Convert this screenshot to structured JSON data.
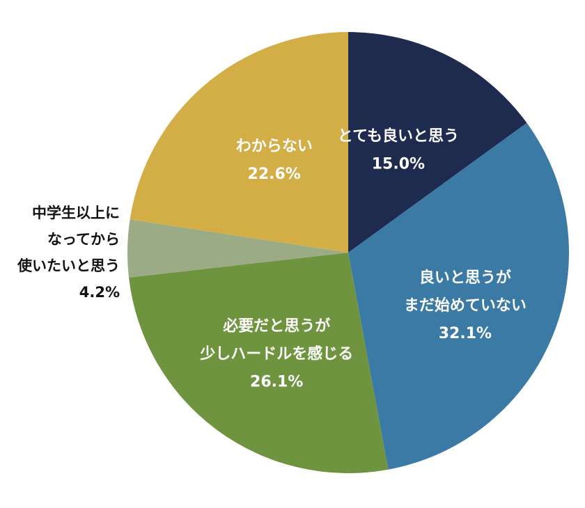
{
  "chart_data": {
    "type": "pie",
    "start_angle_deg": 0,
    "direction": "clockwise",
    "slices": [
      {
        "label_lines": [
          "とても良いと思う"
        ],
        "value": 15.0,
        "value_label": "15.0%",
        "color": "#1f2a4f",
        "label_position": "inside"
      },
      {
        "label_lines": [
          "良いと思うが",
          "まだ始めていない"
        ],
        "value": 32.1,
        "value_label": "32.1%",
        "color": "#3b7aa5",
        "label_position": "inside"
      },
      {
        "label_lines": [
          "必要だと思うが",
          "少しハードルを感じる"
        ],
        "value": 26.1,
        "value_label": "26.1%",
        "color": "#6f9440",
        "label_position": "inside"
      },
      {
        "label_lines": [
          "中学生以上に",
          "なってから",
          "使いたいと思う"
        ],
        "value": 4.2,
        "value_label": "4.2%",
        "color": "#9aab86",
        "label_position": "outside-left"
      },
      {
        "label_lines": [
          "わからない"
        ],
        "value": 22.6,
        "value_label": "22.6%",
        "color": "#d3ad45",
        "label_position": "inside"
      }
    ]
  }
}
